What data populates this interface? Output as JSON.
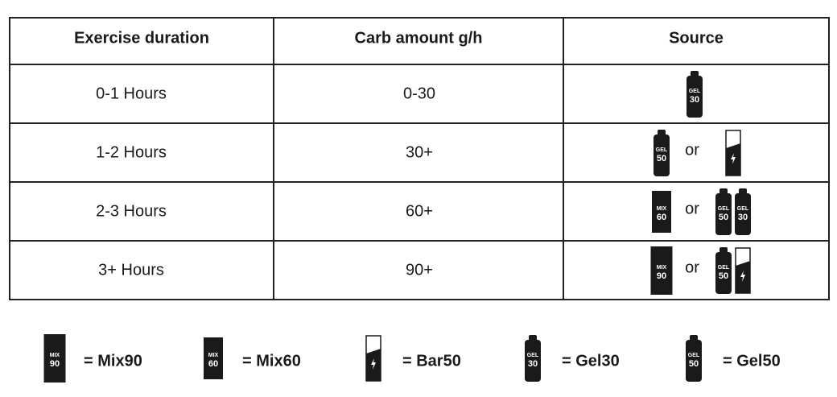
{
  "table": {
    "headers": [
      "Exercise duration",
      "Carb amount g/h",
      "Source"
    ],
    "rows": [
      {
        "duration": "0-1 Hours",
        "carbs": "0-30",
        "source": {
          "options": [
            [
              {
                "shape": "bottle",
                "brand": "GEL",
                "number": "30"
              }
            ]
          ]
        }
      },
      {
        "duration": "1-2 Hours",
        "carbs": "30+",
        "source": {
          "joiner": "or",
          "options": [
            [
              {
                "shape": "bottle",
                "brand": "GEL",
                "number": "50"
              }
            ],
            [
              {
                "shape": "bar"
              }
            ]
          ]
        }
      },
      {
        "duration": "2-3 Hours",
        "carbs": "60+",
        "source": {
          "joiner": "or",
          "options": [
            [
              {
                "shape": "box",
                "brand": "MIX",
                "number": "60"
              }
            ],
            [
              {
                "shape": "bottle",
                "brand": "GEL",
                "number": "50"
              },
              {
                "shape": "bottle",
                "brand": "GEL",
                "number": "30"
              }
            ]
          ]
        }
      },
      {
        "duration": "3+ Hours",
        "carbs": "90+",
        "source": {
          "joiner": "or",
          "options": [
            [
              {
                "shape": "box",
                "brand": "MIX",
                "number": "90"
              }
            ],
            [
              {
                "shape": "bottle",
                "brand": "GEL",
                "number": "50"
              },
              {
                "shape": "bar"
              }
            ]
          ]
        }
      }
    ]
  },
  "legend": [
    {
      "icon": {
        "shape": "box",
        "brand": "MIX",
        "number": "90"
      },
      "label": "= Mix90"
    },
    {
      "icon": {
        "shape": "box",
        "brand": "MIX",
        "number": "60"
      },
      "label": "= Mix60"
    },
    {
      "icon": {
        "shape": "bar"
      },
      "label": "= Bar50"
    },
    {
      "icon": {
        "shape": "bottle",
        "brand": "GEL",
        "number": "30"
      },
      "label": "= Gel30"
    },
    {
      "icon": {
        "shape": "bottle",
        "brand": "GEL",
        "number": "50"
      },
      "label": "= Gel50"
    }
  ]
}
